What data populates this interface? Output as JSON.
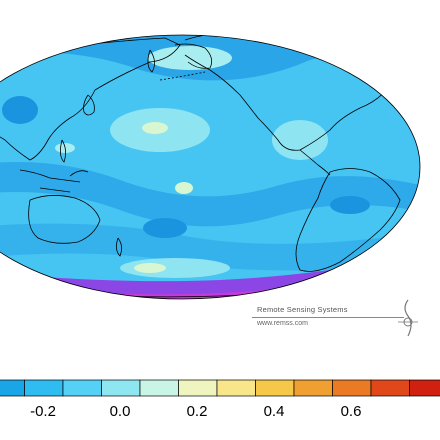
{
  "credit": {
    "organization": "Remote Sensing Systems",
    "url": "www.remss.com"
  },
  "colorbar": {
    "tick_labels": [
      "-0.2",
      "0.0",
      "0.2",
      "0.4",
      "0.6"
    ],
    "tick_values": [
      -0.2,
      0.0,
      0.2,
      0.4,
      0.6
    ],
    "colors": [
      "#1aa6e6",
      "#2fbcf0",
      "#55d1f5",
      "#8de6f0",
      "#c8f5e6",
      "#f0f5c0",
      "#fae68a",
      "#f5c84a",
      "#f0a030",
      "#ea7a24",
      "#e0481c",
      "#d02010",
      "#c41414"
    ]
  },
  "map": {
    "projection": "Hammer (Pacific-centered)",
    "palette": {
      "ocean_base": "#46c4f2",
      "cool_band": "#2aa5e8",
      "warm_patch": "#a8eef0",
      "warmest_patch": "#d8f7d0",
      "polar_low": "#8c46e6",
      "polar_lowest": "#c43adb",
      "coastline": "#000000"
    }
  }
}
